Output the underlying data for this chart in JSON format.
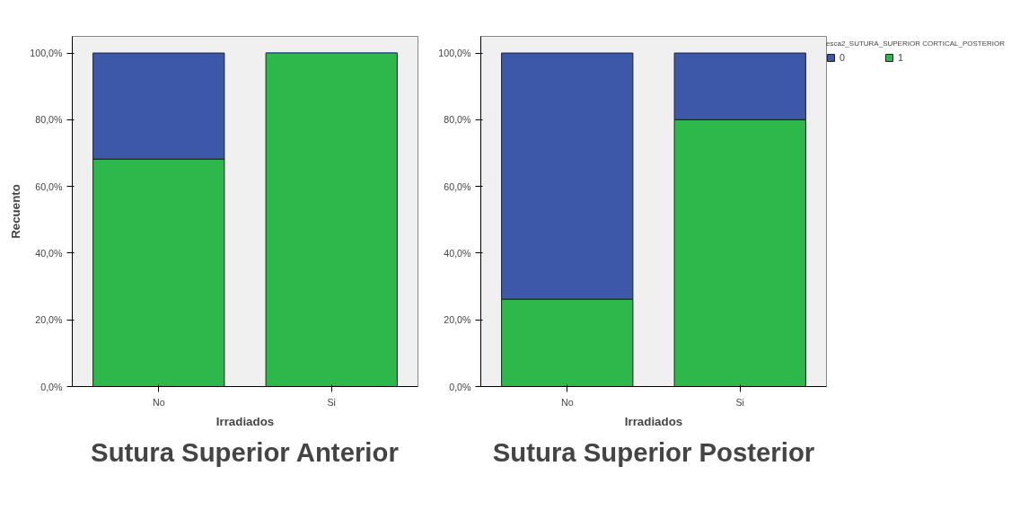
{
  "chart_data": [
    {
      "type": "bar",
      "stacked": true,
      "title": "Sutura Superior Anterior",
      "xlabel": "Irradiados",
      "ylabel": "Recuento",
      "categories": [
        "No",
        "Si"
      ],
      "series": [
        {
          "color": "#2eb84b",
          "values": [
            68.2,
            100
          ]
        },
        {
          "color": "#3d58a8",
          "values": [
            31.8,
            0
          ]
        }
      ],
      "ylim": [
        0,
        105
      ],
      "yticks": [
        {
          "value": 0,
          "label": "0,0%"
        },
        {
          "value": 20,
          "label": "20,0%"
        },
        {
          "value": 40,
          "label": "40,0%"
        },
        {
          "value": 60,
          "label": "60,0%"
        },
        {
          "value": 80,
          "label": "80,0%"
        },
        {
          "value": 100,
          "label": "100,0%"
        }
      ],
      "grid": false,
      "legend": false
    },
    {
      "type": "bar",
      "stacked": true,
      "title": "Sutura Superior Posterior",
      "xlabel": "Irradiados",
      "legend_title": "esca2_SUTURA_SUPERIOR CORTICAL_POSTERIOR",
      "categories": [
        "No",
        "Si"
      ],
      "series": [
        {
          "name": "1",
          "color": "#2eb84b",
          "values": [
            26.2,
            80
          ]
        },
        {
          "name": "0",
          "color": "#3d58a8",
          "values": [
            73.8,
            20
          ]
        }
      ],
      "ylim": [
        0,
        105
      ],
      "yticks": [
        {
          "value": 0,
          "label": "0,0%"
        },
        {
          "value": 20,
          "label": "20,0%"
        },
        {
          "value": 40,
          "label": "40,0%"
        },
        {
          "value": 60,
          "label": "60,0%"
        },
        {
          "value": 80,
          "label": "80,0%"
        },
        {
          "value": 100,
          "label": "100,0%"
        }
      ],
      "grid": false,
      "legend": "top right"
    }
  ]
}
